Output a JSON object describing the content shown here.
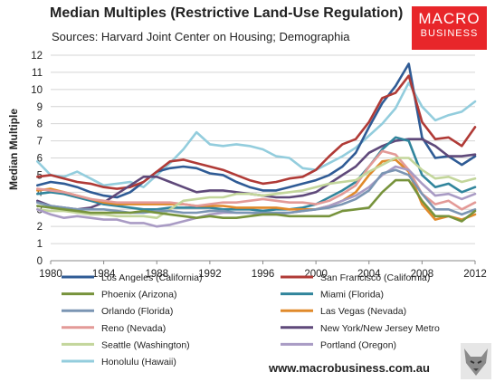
{
  "header": {
    "title": "Median Multiples (Restrictive Land-Use Regulation)",
    "subtitle": "Sources: Harvard Joint Center on Housing; Demographia"
  },
  "logo": {
    "line1": "MACRO",
    "line2": "BUSINESS",
    "color": "#e8262a"
  },
  "footer": {
    "url": "www.macrobusiness.com.au"
  },
  "chart_data": {
    "type": "line",
    "ylabel": "Median Multiple",
    "xlabel": "",
    "ylim": [
      0,
      12
    ],
    "xlim": [
      1980,
      2012
    ],
    "yticks": [
      0,
      1,
      2,
      3,
      4,
      5,
      6,
      7,
      8,
      9,
      10,
      11,
      12
    ],
    "xticks": [
      1980,
      1984,
      1988,
      1992,
      1996,
      2000,
      2004,
      2008,
      2012
    ],
    "grid": true,
    "legend": "bottom",
    "x": [
      1979,
      1980,
      1981,
      1982,
      1983,
      1984,
      1985,
      1986,
      1987,
      1988,
      1989,
      1990,
      1991,
      1992,
      1993,
      1994,
      1995,
      1996,
      1997,
      1998,
      1999,
      2000,
      2001,
      2002,
      2003,
      2004,
      2005,
      2006,
      2007,
      2008,
      2009,
      2010,
      2011,
      2012
    ],
    "series": [
      {
        "name": "Los Angeles (California)",
        "color": "#2f5b95",
        "values": [
          4.4,
          4.6,
          4.5,
          4.3,
          4.0,
          3.8,
          3.7,
          4.0,
          4.6,
          5.2,
          5.4,
          5.5,
          5.4,
          5.1,
          5.0,
          4.6,
          4.3,
          4.1,
          4.1,
          4.3,
          4.5,
          4.7,
          5.0,
          5.5,
          6.3,
          7.8,
          9.2,
          10.2,
          11.5,
          7.2,
          6.0,
          6.1,
          5.6,
          6.1
        ]
      },
      {
        "name": "San Francisco (California)",
        "color": "#b03a36",
        "values": [
          4.9,
          5.0,
          4.8,
          4.6,
          4.5,
          4.3,
          4.2,
          4.3,
          4.6,
          5.2,
          5.8,
          5.9,
          5.7,
          5.5,
          5.3,
          5.0,
          4.7,
          4.5,
          4.6,
          4.8,
          4.9,
          5.3,
          6.1,
          6.8,
          7.1,
          8.1,
          9.5,
          9.8,
          10.8,
          8.1,
          7.1,
          7.2,
          6.7,
          7.8
        ]
      },
      {
        "name": "Phoenix (Arizona)",
        "color": "#77933c",
        "values": [
          3.2,
          3.1,
          3.0,
          2.9,
          2.8,
          2.8,
          2.8,
          2.8,
          2.9,
          2.8,
          2.7,
          2.6,
          2.5,
          2.6,
          2.5,
          2.5,
          2.6,
          2.7,
          2.7,
          2.6,
          2.6,
          2.6,
          2.6,
          2.9,
          3.0,
          3.1,
          4.0,
          4.7,
          4.7,
          3.5,
          2.6,
          2.6,
          2.3,
          2.9
        ]
      },
      {
        "name": "Miami (Florida)",
        "color": "#31859c",
        "values": [
          3.9,
          4.0,
          3.9,
          3.7,
          3.5,
          3.3,
          3.2,
          3.1,
          3.0,
          3.0,
          3.1,
          3.1,
          3.1,
          3.1,
          3.0,
          3.0,
          3.0,
          2.9,
          3.0,
          3.0,
          3.1,
          3.3,
          3.7,
          4.1,
          4.6,
          5.5,
          6.5,
          7.2,
          7.0,
          5.0,
          4.3,
          4.5,
          4.0,
          4.3
        ]
      },
      {
        "name": "Orlando (Florida)",
        "color": "#7b95b3",
        "values": [
          3.4,
          3.2,
          3.1,
          3.0,
          3.0,
          3.0,
          2.9,
          2.8,
          2.8,
          2.9,
          2.9,
          2.8,
          2.8,
          2.9,
          2.9,
          2.8,
          2.8,
          2.8,
          2.8,
          2.8,
          2.9,
          3.0,
          3.1,
          3.3,
          3.6,
          4.1,
          5.1,
          5.3,
          5.0,
          3.9,
          3.0,
          3.0,
          2.7,
          3.0
        ]
      },
      {
        "name": "Las Vegas (Nevada)",
        "color": "#e08a2b",
        "values": [
          4.1,
          4.2,
          4.0,
          3.8,
          3.6,
          3.4,
          3.3,
          3.3,
          3.3,
          3.3,
          3.3,
          3.3,
          3.2,
          3.2,
          3.2,
          3.1,
          3.1,
          3.1,
          3.1,
          3.0,
          3.0,
          3.0,
          3.2,
          3.5,
          4.0,
          5.0,
          5.8,
          5.9,
          5.2,
          3.3,
          2.4,
          2.6,
          2.4,
          2.7
        ]
      },
      {
        "name": "Reno (Nevada)",
        "color": "#e39a97",
        "values": [
          4.2,
          4.1,
          4.0,
          3.8,
          3.6,
          3.5,
          3.4,
          3.4,
          3.4,
          3.4,
          3.4,
          3.3,
          3.2,
          3.3,
          3.4,
          3.4,
          3.5,
          3.6,
          3.5,
          3.4,
          3.4,
          3.3,
          3.5,
          3.9,
          4.4,
          5.5,
          6.4,
          6.2,
          5.3,
          3.9,
          3.3,
          3.5,
          3.0,
          3.4
        ]
      },
      {
        "name": "New York/New Jersey Metro",
        "color": "#5f497a",
        "values": [
          3.5,
          3.2,
          3.1,
          3.0,
          3.1,
          3.4,
          3.9,
          4.4,
          4.9,
          4.9,
          4.6,
          4.3,
          4.0,
          4.1,
          4.1,
          4.0,
          3.9,
          3.8,
          3.7,
          3.7,
          3.8,
          4.0,
          4.5,
          5.0,
          5.5,
          6.3,
          6.7,
          7.0,
          7.1,
          7.1,
          6.7,
          6.1,
          6.1,
          6.2
        ]
      },
      {
        "name": "Seattle (Washington)",
        "color": "#c3d69b",
        "values": [
          3.0,
          2.9,
          2.9,
          2.8,
          2.7,
          2.7,
          2.6,
          2.6,
          2.6,
          2.5,
          3.0,
          3.5,
          3.6,
          3.7,
          3.7,
          3.9,
          3.9,
          3.8,
          3.9,
          4.0,
          4.1,
          4.3,
          4.5,
          4.6,
          4.7,
          5.2,
          5.6,
          6.0,
          6.0,
          5.3,
          4.8,
          4.9,
          4.6,
          4.8
        ]
      },
      {
        "name": "Portland (Oregon)",
        "color": "#a99bc4",
        "values": [
          3.0,
          2.7,
          2.5,
          2.6,
          2.5,
          2.4,
          2.4,
          2.2,
          2.2,
          2.0,
          2.1,
          2.3,
          2.5,
          2.7,
          2.8,
          2.8,
          2.8,
          2.7,
          2.7,
          2.8,
          2.9,
          3.0,
          3.2,
          3.5,
          3.8,
          4.3,
          5.0,
          5.5,
          5.3,
          4.5,
          3.8,
          3.9,
          3.6,
          3.9
        ]
      },
      {
        "name": "Honolulu (Hawaii)",
        "color": "#93cddd",
        "values": [
          5.8,
          5.0,
          4.9,
          5.2,
          4.8,
          4.4,
          4.5,
          4.6,
          4.3,
          5.0,
          5.7,
          6.5,
          7.5,
          6.8,
          6.7,
          6.8,
          6.7,
          6.5,
          6.1,
          6.0,
          5.4,
          5.3,
          5.7,
          6.1,
          6.6,
          7.3,
          8.0,
          8.9,
          10.4,
          9.0,
          8.2,
          8.5,
          8.7,
          9.3
        ]
      }
    ]
  }
}
